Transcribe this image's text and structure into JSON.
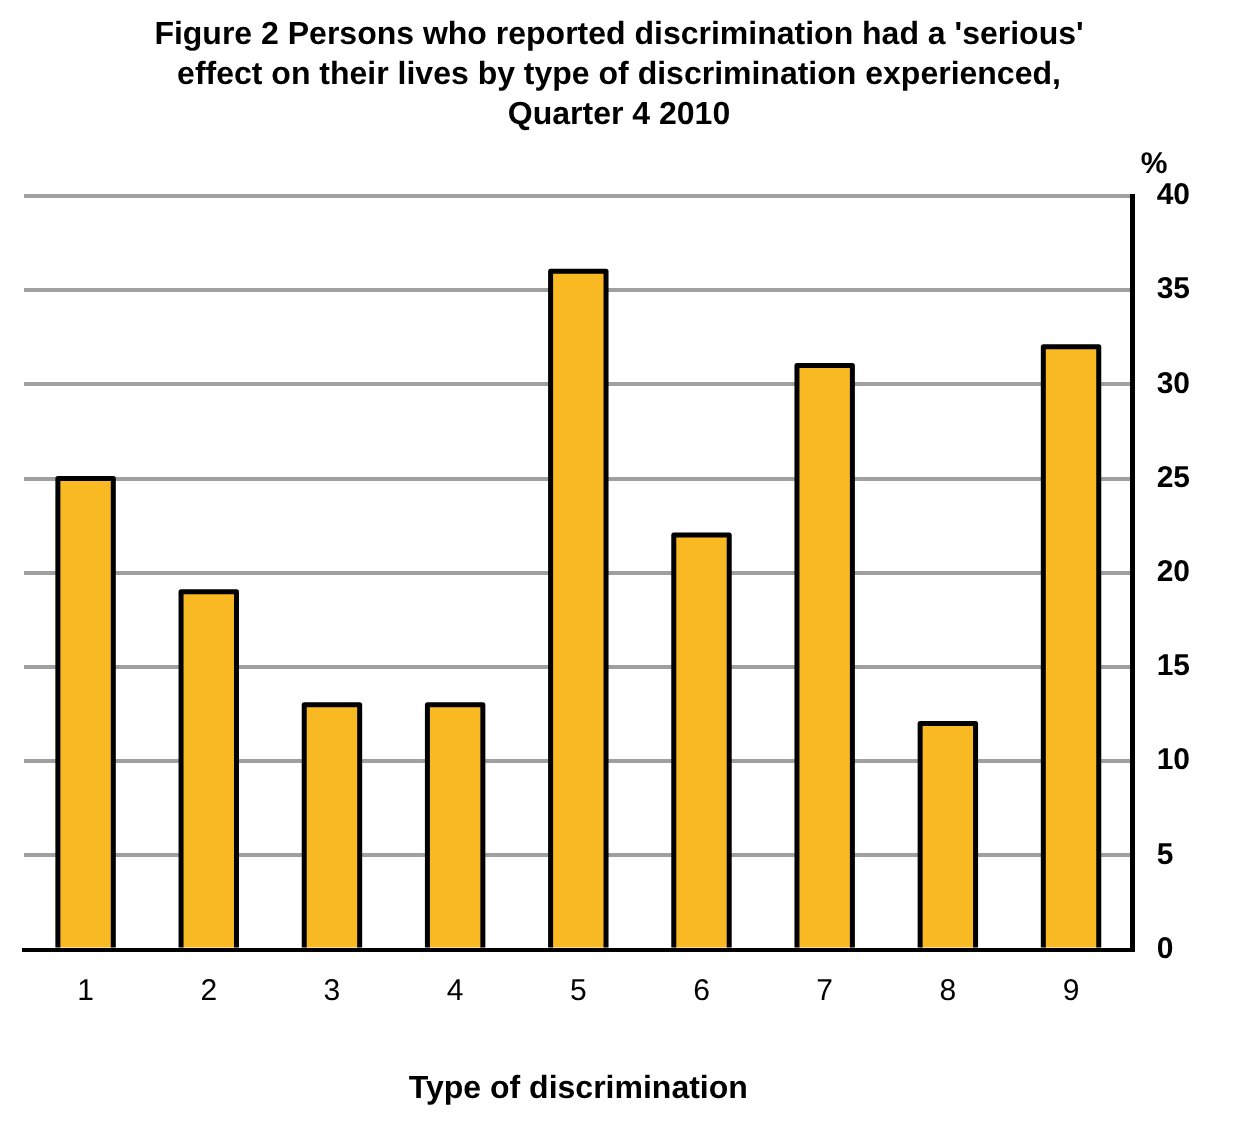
{
  "chart_data": {
    "type": "bar",
    "title": "Figure 2 Persons who reported discrimination had a 'serious' effect on their lives by type of discrimination experienced, Quarter 4 2010",
    "xlabel": "Type of discrimination",
    "ylabel": "%",
    "categories": [
      "1",
      "2",
      "3",
      "4",
      "5",
      "6",
      "7",
      "8",
      "9"
    ],
    "values": [
      25,
      19,
      13,
      13,
      36,
      22,
      31,
      12,
      32
    ],
    "color": "#f9b923",
    "ylim": [
      0,
      40
    ],
    "yticks": [
      0,
      5,
      10,
      15,
      20,
      25,
      30,
      35,
      40
    ],
    "grid": "y",
    "legend": false
  }
}
